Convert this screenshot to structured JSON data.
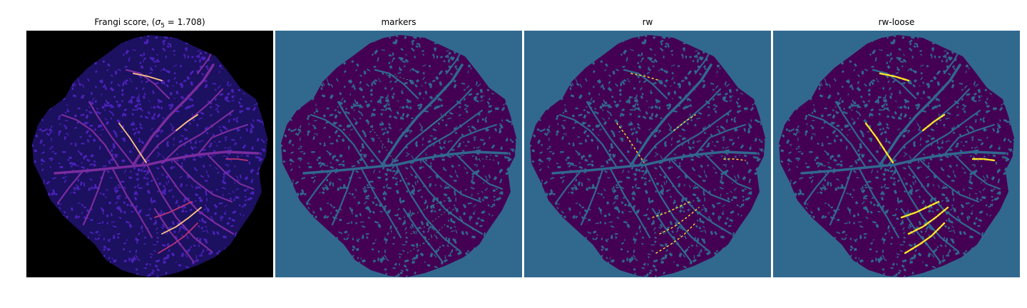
{
  "figure": {
    "panels": [
      {
        "id": "frangi",
        "title_prefix": "Frangi score, (",
        "title_sigma": "σ",
        "title_sub": "5",
        "title_rest": " = 1.708)",
        "background": "#000000",
        "colormap": "magma",
        "colors": {
          "dark": "#1c1060",
          "mid": "#4a22b8",
          "hot1": "#b8337a",
          "hot2": "#fec287"
        }
      },
      {
        "id": "markers",
        "title": "markers",
        "background": "#31688e",
        "colors": {
          "region": "#440154",
          "hole": "#31688e",
          "seed": "#35b779"
        }
      },
      {
        "id": "rw",
        "title": "rw",
        "background": "#31688e",
        "colors": {
          "region": "#440154",
          "hole": "#31688e",
          "seed": "#fde725"
        }
      },
      {
        "id": "rw-loose",
        "title": "rw-loose",
        "background": "#31688e",
        "colors": {
          "region": "#440154",
          "hole": "#31688e",
          "seed": "#fde725"
        }
      }
    ]
  }
}
